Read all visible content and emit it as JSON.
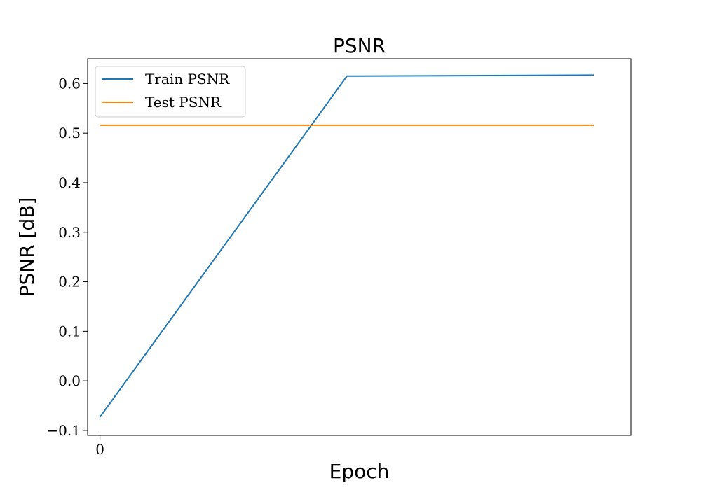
{
  "chart_data": {
    "type": "line",
    "title": "PSNR",
    "xlabel": "Epoch",
    "ylabel": "PSNR [dB]",
    "x": [
      0,
      1,
      2
    ],
    "xticks": [
      0
    ],
    "xtick_labels": [
      "0"
    ],
    "xlim": [
      -0.05,
      2.15
    ],
    "ylim": [
      -0.11,
      0.65
    ],
    "yticks": [
      -0.1,
      0.0,
      0.1,
      0.2,
      0.3,
      0.4,
      0.5,
      0.6
    ],
    "ytick_labels": [
      "−0.1",
      "0.0",
      "0.1",
      "0.2",
      "0.3",
      "0.4",
      "0.5",
      "0.6"
    ],
    "grid": false,
    "legend_position": "top-left",
    "series": [
      {
        "name": "Train PSNR",
        "color": "#1f77b4",
        "values": [
          -0.073,
          0.615,
          0.617
        ]
      },
      {
        "name": "Test PSNR",
        "color": "#ff7f0e",
        "values": [
          0.516,
          0.516,
          0.516
        ]
      }
    ]
  }
}
